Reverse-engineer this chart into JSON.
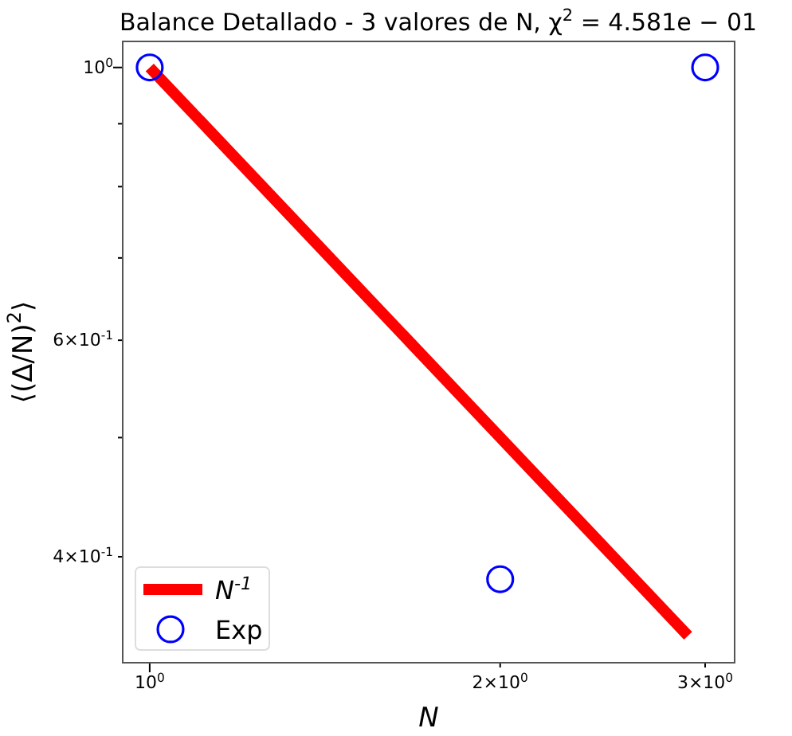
{
  "chart_data": {
    "type": "line",
    "title": "Balance Detallado - 3 valores de N, χ$^{2}$ = 4.581e − 01",
    "xlabel": "N",
    "ylabel": "⟨(Δ/N)$^{2}$⟩",
    "log": "xy",
    "xlim": [
      0.948,
      3.18
    ],
    "ylim": [
      0.328,
      1.05
    ],
    "xticks": [
      {
        "value": 1,
        "label": "10$^{0}$"
      },
      {
        "value": 2,
        "label": "2×10$^{0}$"
      },
      {
        "value": 3,
        "label": "3×10$^{0}$"
      }
    ],
    "yticks": [
      {
        "value": 0.4,
        "label": "4×10$^{-1}$"
      },
      {
        "value": 0.5,
        "label": null
      },
      {
        "value": 0.6,
        "label": "6×10$^{-1}$"
      },
      {
        "value": 0.7,
        "label": null
      },
      {
        "value": 0.8,
        "label": null
      },
      {
        "value": 0.9,
        "label": null
      },
      {
        "value": 1,
        "label": "10$^{0}$"
      }
    ],
    "grid": false,
    "legend": "bottom left",
    "series": [
      {
        "name": "N$^{-1}$",
        "color": "#ff0000",
        "x": [
          1,
          2.9
        ],
        "values": [
          1,
          0.345
        ],
        "line_style": "solid",
        "marker": "none"
      },
      {
        "name": "Exp",
        "type": "scatter",
        "color": "#0000ff",
        "x": [
          1,
          2,
          3
        ],
        "values": [
          1,
          0.3835,
          1
        ],
        "marker": "circle"
      }
    ]
  }
}
